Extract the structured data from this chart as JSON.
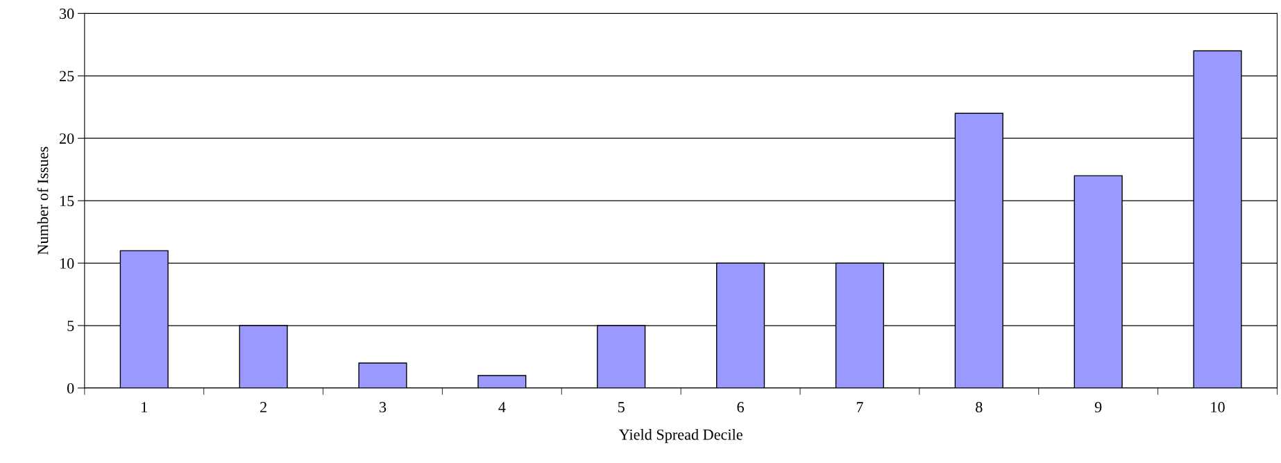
{
  "chart_data": {
    "type": "bar",
    "xlabel": "Yield Spread Decile",
    "ylabel": "Number of Issues",
    "categories": [
      "1",
      "2",
      "3",
      "4",
      "5",
      "6",
      "7",
      "8",
      "9",
      "10"
    ],
    "values": [
      11,
      5,
      2,
      1,
      5,
      10,
      10,
      22,
      17,
      27
    ],
    "color": "#9999ff",
    "ylim": [
      0,
      30
    ],
    "yticks": [
      0,
      5,
      10,
      15,
      20,
      25,
      30
    ],
    "grid": "y"
  }
}
